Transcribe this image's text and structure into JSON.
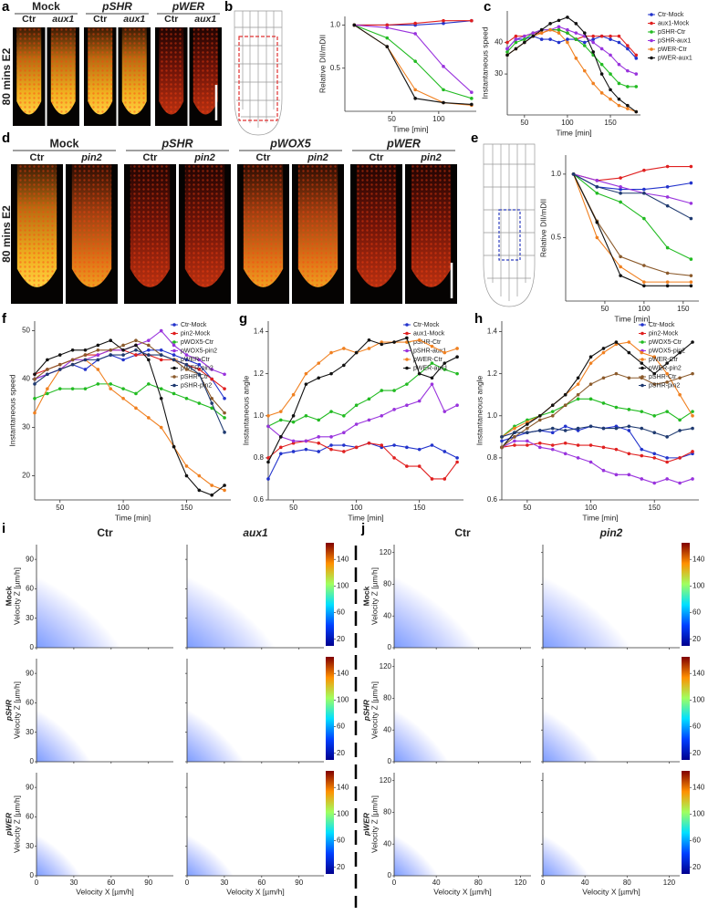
{
  "image_panels": [
    {
      "label": "a",
      "side_label": "80 mins E2",
      "groups": [
        {
          "name": "Mock",
          "columns": [
            "Ctr",
            "aux1"
          ]
        },
        {
          "name": "pSHR",
          "columns": [
            "Ctr",
            "aux1"
          ]
        },
        {
          "name": "pWER",
          "columns": [
            "Ctr",
            "aux1"
          ]
        }
      ]
    },
    {
      "label": "d",
      "side_label": "80 mins E2",
      "groups": [
        {
          "name": "Mock",
          "columns": [
            "Ctr",
            "pin2"
          ]
        },
        {
          "name": "pSHR",
          "columns": [
            "Ctr",
            "pin2"
          ]
        },
        {
          "name": "pWOX5",
          "columns": [
            "Ctr",
            "pin2"
          ]
        },
        {
          "name": "pWER",
          "columns": [
            "Ctr",
            "pin2"
          ]
        }
      ]
    }
  ],
  "chart_data": [
    {
      "type": "line",
      "label": "b",
      "xlabel": "Time [min]",
      "ylabel": "Relative DII/mDII",
      "x": [
        10,
        45,
        75,
        105,
        135
      ],
      "xlim": [
        0,
        140
      ],
      "ylim": [
        0,
        1.1
      ],
      "xticks": [
        50,
        100
      ],
      "yticks": [
        0.5,
        {
          "value": 1,
          "label": "1.0"
        }
      ],
      "series": [
        {
          "color": "#2233cc",
          "values": [
            1.0,
            1.0,
            1.0,
            1.02,
            1.05
          ]
        },
        {
          "color": "#e02020",
          "values": [
            1.0,
            1.0,
            1.02,
            1.05,
            1.05
          ]
        },
        {
          "color": "#22bb22",
          "values": [
            1.0,
            0.85,
            0.58,
            0.25,
            0.15
          ]
        },
        {
          "color": "#9933dd",
          "values": [
            1.0,
            0.97,
            0.9,
            0.52,
            0.22
          ]
        },
        {
          "color": "#f08020",
          "values": [
            1.0,
            0.75,
            0.25,
            0.1,
            0.07
          ]
        },
        {
          "color": "#111111",
          "values": [
            1.0,
            0.75,
            0.15,
            0.1,
            0.08
          ]
        }
      ]
    },
    {
      "type": "line",
      "label": "c",
      "xlabel": "Time [min]",
      "ylabel": "Instantaneous speed",
      "legend": "right",
      "x": [
        30,
        40,
        50,
        60,
        70,
        80,
        90,
        100,
        110,
        120,
        130,
        140,
        150,
        160,
        170,
        180
      ],
      "xlim": [
        30,
        185
      ],
      "ylim": [
        17,
        50
      ],
      "xticks": [
        50,
        100,
        150
      ],
      "yticks": [
        30,
        40
      ],
      "series": [
        {
          "name": "Ctr-Mock",
          "color": "#2233cc",
          "values": [
            38,
            41,
            41,
            42,
            41,
            41,
            40,
            41,
            41,
            40,
            41,
            42,
            41,
            40,
            38,
            35
          ]
        },
        {
          "name": "aux1-Mock",
          "color": "#e02020",
          "values": [
            40,
            42,
            42,
            43,
            43,
            44,
            44,
            43,
            41,
            42,
            42,
            42,
            42,
            42,
            39,
            36
          ]
        },
        {
          "name": "pSHR-Ctr",
          "color": "#22bb22",
          "values": [
            37,
            40,
            41,
            43,
            44,
            44,
            44,
            43,
            41,
            39,
            36,
            33,
            30,
            27,
            26,
            26
          ]
        },
        {
          "name": "pSHR-aux1",
          "color": "#9933dd",
          "values": [
            38,
            41,
            42,
            43,
            44,
            44,
            45,
            44,
            43,
            42,
            40,
            38,
            36,
            33,
            31,
            30
          ]
        },
        {
          "name": "pWER-Ctr",
          "color": "#f08020",
          "values": [
            36,
            38,
            40,
            42,
            43,
            44,
            43,
            40,
            35,
            31,
            27,
            24,
            22,
            20,
            19,
            18
          ]
        },
        {
          "name": "pWER-aux1",
          "color": "#111111",
          "values": [
            36,
            38,
            40,
            42,
            44,
            46,
            47,
            48,
            46,
            43,
            37,
            30,
            25,
            22,
            20,
            18
          ]
        }
      ]
    },
    {
      "type": "line",
      "label": "e",
      "xlabel": "Time [min]",
      "ylabel": "Relative DII/mDII",
      "x": [
        10,
        40,
        70,
        100,
        130,
        160
      ],
      "xlim": [
        0,
        170
      ],
      "ylim": [
        0,
        1.15
      ],
      "xticks": [
        50,
        100,
        150
      ],
      "yticks": [
        0.5,
        {
          "value": 1,
          "label": "1.0"
        }
      ],
      "series": [
        {
          "color": "#2233cc",
          "values": [
            1.0,
            0.9,
            0.88,
            0.88,
            0.9,
            0.93
          ]
        },
        {
          "color": "#e02020",
          "values": [
            1.0,
            0.95,
            0.97,
            1.03,
            1.06,
            1.06
          ]
        },
        {
          "color": "#22bb22",
          "values": [
            1.0,
            0.85,
            0.78,
            0.65,
            0.42,
            0.33
          ]
        },
        {
          "color": "#9933dd",
          "values": [
            1.0,
            0.95,
            0.9,
            0.85,
            0.82,
            0.77
          ]
        },
        {
          "color": "#f08020",
          "values": [
            1.0,
            0.5,
            0.27,
            0.15,
            0.15,
            0.15
          ]
        },
        {
          "color": "#8b5a2b",
          "values": [
            1.0,
            0.63,
            0.35,
            0.28,
            0.22,
            0.2
          ]
        },
        {
          "color": "#111111",
          "values": [
            1.0,
            0.62,
            0.2,
            0.12,
            0.12,
            0.12
          ]
        },
        {
          "color": "#1f3a70",
          "values": [
            1.0,
            0.9,
            0.85,
            0.85,
            0.75,
            0.65
          ]
        }
      ]
    },
    {
      "type": "line",
      "label": "f",
      "xlabel": "Time [min]",
      "ylabel": "Instantaneous speed",
      "legend": "upper right",
      "x": [
        30,
        40,
        50,
        60,
        70,
        80,
        90,
        100,
        110,
        120,
        130,
        140,
        150,
        160,
        170,
        180
      ],
      "xlim": [
        30,
        185
      ],
      "ylim": [
        15,
        52
      ],
      "xticks": [
        50,
        100,
        150
      ],
      "yticks": [
        20,
        30,
        40,
        50
      ],
      "series": [
        {
          "name": "Ctr-Mock",
          "color": "#2233cc",
          "values": [
            40,
            41,
            42,
            43,
            42,
            44,
            45,
            44,
            45,
            46,
            46,
            45,
            44,
            43,
            40,
            36
          ]
        },
        {
          "name": "pin2-Mock",
          "color": "#e02020",
          "values": [
            41,
            42,
            43,
            44,
            45,
            45,
            46,
            46,
            45,
            45,
            44,
            44,
            43,
            42,
            40,
            38
          ]
        },
        {
          "name": "pWOX5-Ctr",
          "color": "#22bb22",
          "values": [
            36,
            37,
            38,
            38,
            38,
            39,
            39,
            38,
            37,
            39,
            38,
            37,
            36,
            35,
            34,
            32
          ]
        },
        {
          "name": "pWOX5-pin2",
          "color": "#9933dd",
          "values": [
            40,
            41,
            42,
            44,
            44,
            45,
            46,
            46,
            47,
            48,
            50,
            47,
            45,
            44,
            42,
            41
          ]
        },
        {
          "name": "pWER-Ctr",
          "color": "#f08020",
          "values": [
            33,
            38,
            42,
            43,
            44,
            42,
            38,
            36,
            34,
            32,
            30,
            26,
            22,
            20,
            18,
            17
          ]
        },
        {
          "name": "pWER-pin2",
          "color": "#111111",
          "values": [
            41,
            44,
            45,
            46,
            46,
            47,
            48,
            46,
            47,
            44,
            36,
            26,
            20,
            17,
            16,
            18
          ]
        },
        {
          "name": "pSHR-Ctr",
          "color": "#8b5a2b",
          "values": [
            40,
            42,
            43,
            44,
            45,
            46,
            46,
            47,
            48,
            47,
            45,
            44,
            42,
            41,
            36,
            33
          ]
        },
        {
          "name": "pSHR-pin2",
          "color": "#1f3a70",
          "values": [
            39,
            41,
            42,
            43,
            44,
            44,
            45,
            45,
            46,
            45,
            45,
            44,
            43,
            41,
            35,
            29
          ]
        }
      ]
    },
    {
      "type": "line",
      "label": "g",
      "xlabel": "Time [min]",
      "ylabel": "Instantaneous angle",
      "legend": "upper right",
      "x": [
        30,
        40,
        50,
        60,
        70,
        80,
        90,
        100,
        110,
        120,
        130,
        140,
        150,
        160,
        170,
        180
      ],
      "xlim": [
        30,
        185
      ],
      "ylim": [
        0.6,
        1.45
      ],
      "xticks": [
        50,
        100,
        150
      ],
      "yticks": [
        0.6,
        0.8,
        {
          "value": 1,
          "label": "1.0"
        },
        1.2,
        1.4
      ],
      "series": [
        {
          "name": "Ctr-Mock",
          "color": "#2233cc",
          "values": [
            0.7,
            0.82,
            0.83,
            0.84,
            0.83,
            0.86,
            0.86,
            0.85,
            0.87,
            0.85,
            0.86,
            0.85,
            0.84,
            0.86,
            0.83,
            0.8
          ]
        },
        {
          "name": "aux1-Mock",
          "color": "#e02020",
          "values": [
            0.8,
            0.85,
            0.87,
            0.88,
            0.87,
            0.84,
            0.83,
            0.85,
            0.87,
            0.86,
            0.8,
            0.76,
            0.76,
            0.7,
            0.7,
            0.78
          ]
        },
        {
          "name": "pSHR-Ctr",
          "color": "#22bb22",
          "values": [
            0.95,
            0.98,
            0.97,
            1.0,
            0.98,
            1.02,
            1.0,
            1.05,
            1.08,
            1.12,
            1.12,
            1.15,
            1.2,
            1.25,
            1.22,
            1.2
          ]
        },
        {
          "name": "pSHR-aux1",
          "color": "#9933dd",
          "values": [
            0.95,
            0.9,
            0.88,
            0.88,
            0.9,
            0.9,
            0.92,
            0.96,
            0.98,
            1.0,
            1.03,
            1.05,
            1.07,
            1.15,
            1.02,
            1.05
          ]
        },
        {
          "name": "pWER-Ctr",
          "color": "#f08020",
          "values": [
            1.0,
            1.02,
            1.1,
            1.2,
            1.25,
            1.3,
            1.32,
            1.3,
            1.32,
            1.35,
            1.35,
            1.35,
            1.36,
            1.33,
            1.3,
            1.32
          ]
        },
        {
          "name": "pWER-aux1",
          "color": "#111111",
          "values": [
            0.78,
            0.9,
            1.0,
            1.15,
            1.18,
            1.2,
            1.24,
            1.3,
            1.36,
            1.34,
            1.35,
            1.37,
            1.2,
            1.18,
            1.25,
            1.28
          ]
        }
      ]
    },
    {
      "type": "line",
      "label": "h",
      "xlabel": "Time [min]",
      "ylabel": "Instantaneous angle",
      "legend": "upper right",
      "x": [
        30,
        40,
        50,
        60,
        70,
        80,
        90,
        100,
        110,
        120,
        130,
        140,
        150,
        160,
        170,
        180
      ],
      "xlim": [
        30,
        185
      ],
      "ylim": [
        0.6,
        1.45
      ],
      "xticks": [
        50,
        100,
        150
      ],
      "yticks": [
        0.6,
        0.8,
        {
          "value": 1,
          "label": "1.0"
        },
        1.2,
        1.4
      ],
      "series": [
        {
          "name": "Ctr-Mock",
          "color": "#2233cc",
          "values": [
            0.88,
            0.9,
            0.92,
            0.93,
            0.92,
            0.95,
            0.93,
            0.95,
            0.94,
            0.95,
            0.93,
            0.84,
            0.82,
            0.8,
            0.8,
            0.82
          ]
        },
        {
          "name": "pin2-Mock",
          "color": "#e02020",
          "values": [
            0.85,
            0.86,
            0.86,
            0.87,
            0.86,
            0.87,
            0.86,
            0.86,
            0.85,
            0.84,
            0.82,
            0.81,
            0.8,
            0.78,
            0.8,
            0.83
          ]
        },
        {
          "name": "pWOX5-Ctr",
          "color": "#22bb22",
          "values": [
            0.9,
            0.95,
            0.98,
            1.0,
            1.02,
            1.05,
            1.08,
            1.08,
            1.06,
            1.04,
            1.03,
            1.02,
            1.0,
            1.02,
            0.98,
            1.02
          ]
        },
        {
          "name": "pWOX5-pin2",
          "color": "#9933dd",
          "values": [
            0.85,
            0.88,
            0.88,
            0.85,
            0.84,
            0.82,
            0.8,
            0.78,
            0.74,
            0.72,
            0.72,
            0.7,
            0.68,
            0.7,
            0.68,
            0.7
          ]
        },
        {
          "name": "pWER-Ctr",
          "color": "#f08020",
          "values": [
            0.9,
            0.94,
            0.97,
            1.0,
            1.05,
            1.1,
            1.15,
            1.25,
            1.3,
            1.34,
            1.35,
            1.3,
            1.28,
            1.2,
            1.1,
            1.0
          ]
        },
        {
          "name": "pWER-pin2",
          "color": "#111111",
          "values": [
            0.85,
            0.92,
            0.96,
            1.0,
            1.05,
            1.1,
            1.18,
            1.28,
            1.32,
            1.35,
            1.3,
            1.25,
            1.2,
            1.25,
            1.3,
            1.35
          ]
        },
        {
          "name": "pSHR-Ctr",
          "color": "#8b5a2b",
          "values": [
            0.85,
            0.9,
            0.94,
            0.98,
            1.0,
            1.05,
            1.1,
            1.15,
            1.18,
            1.2,
            1.18,
            1.18,
            1.15,
            1.16,
            1.18,
            1.2
          ]
        },
        {
          "name": "pSHR-pin2",
          "color": "#1f3a70",
          "values": [
            0.9,
            0.92,
            0.92,
            0.93,
            0.94,
            0.93,
            0.94,
            0.95,
            0.94,
            0.94,
            0.95,
            0.94,
            0.92,
            0.9,
            0.93,
            0.94
          ]
        }
      ]
    }
  ],
  "density_plots": [
    {
      "label": "i",
      "columns": [
        "Ctr",
        "aux1"
      ],
      "rows": [
        "Mock",
        "pSHR",
        "pWER"
      ],
      "xlabel": "Velocity X [µm/h]",
      "ylabel": "Velocity Z [µm/h]",
      "xlim": [
        0,
        110
      ],
      "ylim": [
        0,
        105
      ],
      "xticks": [
        0,
        30,
        60,
        90
      ],
      "yticks": [
        0,
        30,
        60,
        90
      ],
      "colorbar_lim": [
        10,
        165
      ],
      "colorbar_ticks": [
        20,
        60,
        100,
        140
      ]
    },
    {
      "label": "j",
      "columns": [
        "Ctr",
        "pin2"
      ],
      "rows": [
        "Mock",
        "pSHR",
        "pWER"
      ],
      "xlabel": "Velocity X [µm/h]",
      "ylabel": "Velocity Z [µm/h]",
      "xlim": [
        0,
        130
      ],
      "ylim": [
        0,
        130
      ],
      "xticks": [
        0,
        40,
        80,
        120
      ],
      "yticks": [
        0,
        40,
        80,
        120
      ],
      "colorbar_lim": [
        10,
        165
      ],
      "colorbar_ticks": [
        20,
        60,
        100,
        140
      ]
    }
  ]
}
